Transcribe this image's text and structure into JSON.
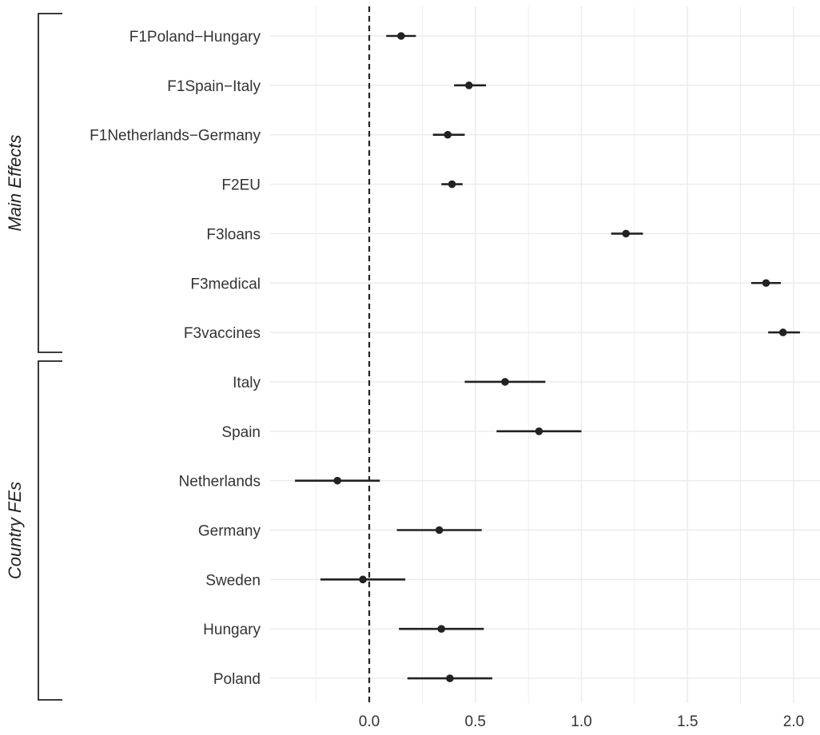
{
  "chart_data": {
    "type": "scatter",
    "subtype": "coefficient-plot",
    "title": "",
    "xlabel": "",
    "ylabel": "",
    "xlim": [
      -0.4,
      2.1
    ],
    "xticks": [
      0.0,
      0.5,
      1.0,
      1.5,
      2.0
    ],
    "xtick_labels": [
      "0.0",
      "0.5",
      "1.0",
      "1.5",
      "2.0"
    ],
    "reference_line": {
      "x": 0,
      "style": "dashed"
    },
    "grid": true,
    "groups": [
      {
        "label": "Main Effects",
        "first_row": 0,
        "last_row": 6
      },
      {
        "label": "Country FEs",
        "first_row": 7,
        "last_row": 13
      }
    ],
    "rows": [
      {
        "label": "F1Poland−Hungary",
        "estimate": 0.15,
        "lower": 0.08,
        "upper": 0.22
      },
      {
        "label": "F1Spain−Italy",
        "estimate": 0.47,
        "lower": 0.4,
        "upper": 0.55
      },
      {
        "label": "F1Netherlands−Germany",
        "estimate": 0.37,
        "lower": 0.3,
        "upper": 0.45
      },
      {
        "label": "F2EU",
        "estimate": 0.39,
        "lower": 0.34,
        "upper": 0.44
      },
      {
        "label": "F3loans",
        "estimate": 1.21,
        "lower": 1.14,
        "upper": 1.29
      },
      {
        "label": "F3medical",
        "estimate": 1.87,
        "lower": 1.8,
        "upper": 1.94
      },
      {
        "label": "F3vaccines",
        "estimate": 1.95,
        "lower": 1.88,
        "upper": 2.03
      },
      {
        "label": "Italy",
        "estimate": 0.64,
        "lower": 0.45,
        "upper": 0.83
      },
      {
        "label": "Spain",
        "estimate": 0.8,
        "lower": 0.6,
        "upper": 1.0
      },
      {
        "label": "Netherlands",
        "estimate": -0.15,
        "lower": -0.35,
        "upper": 0.05
      },
      {
        "label": "Germany",
        "estimate": 0.33,
        "lower": 0.13,
        "upper": 0.53
      },
      {
        "label": "Sweden",
        "estimate": -0.03,
        "lower": -0.23,
        "upper": 0.17
      },
      {
        "label": "Hungary",
        "estimate": 0.34,
        "lower": 0.14,
        "upper": 0.54
      },
      {
        "label": "Poland",
        "estimate": 0.38,
        "lower": 0.18,
        "upper": 0.58
      }
    ],
    "colors": {
      "point": "#222222",
      "interval": "#222222",
      "grid": "#ebebeb",
      "reference": "#222222"
    }
  }
}
